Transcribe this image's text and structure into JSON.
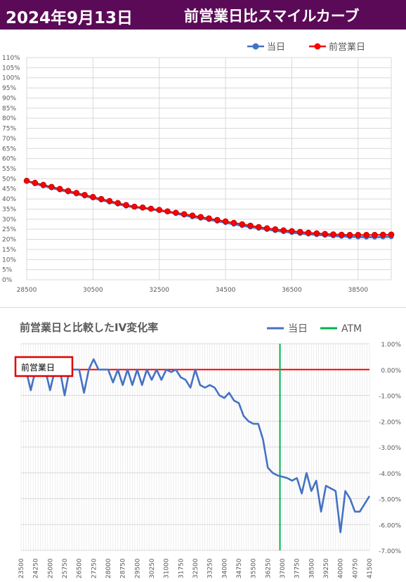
{
  "header": {
    "date": "2024年9月13日",
    "title": "前営業日比スマイルカーブ"
  },
  "chart_data": [
    {
      "type": "line",
      "legend": [
        "当日",
        "前営業日"
      ],
      "legend_position": "top-right",
      "xlim": [
        28500,
        39500
      ],
      "ylim": [
        0,
        1.1
      ],
      "x_ticks": [
        "28500",
        "30500",
        "32500",
        "34500",
        "36500",
        "38500"
      ],
      "y_ticks": [
        "0%",
        "5%",
        "10%",
        "15%",
        "20%",
        "25%",
        "30%",
        "35%",
        "40%",
        "45%",
        "50%",
        "55%",
        "60%",
        "65%",
        "70%",
        "75%",
        "80%",
        "85%",
        "90%",
        "95%",
        "100%",
        "105%",
        "110%"
      ],
      "grid": true,
      "colors": {
        "today": "#4472c4",
        "prev": "#ff0000"
      },
      "series": [
        {
          "name": "当日",
          "x": [
            28500,
            28750,
            29000,
            29250,
            29500,
            29750,
            30000,
            30250,
            30500,
            30750,
            31000,
            31250,
            31500,
            31750,
            32000,
            32250,
            32500,
            32750,
            33000,
            33250,
            33500,
            33750,
            34000,
            34250,
            34500,
            34750,
            35000,
            35250,
            35500,
            35750,
            36000,
            36250,
            36500,
            36750,
            37000,
            37250,
            37500,
            37750,
            38000,
            38250,
            38500,
            38750,
            39000,
            39250,
            39500
          ],
          "values": [
            0.49,
            0.475,
            0.465,
            0.455,
            0.445,
            0.435,
            0.425,
            0.415,
            0.405,
            0.395,
            0.385,
            0.375,
            0.365,
            0.36,
            0.355,
            0.35,
            0.343,
            0.336,
            0.328,
            0.32,
            0.312,
            0.305,
            0.298,
            0.29,
            0.283,
            0.275,
            0.268,
            0.261,
            0.255,
            0.249,
            0.243,
            0.238,
            0.234,
            0.229,
            0.226,
            0.223,
            0.22,
            0.217,
            0.215,
            0.213,
            0.212,
            0.211,
            0.211,
            0.212,
            0.213
          ]
        },
        {
          "name": "前営業日",
          "x": [
            28500,
            28750,
            29000,
            29250,
            29500,
            29750,
            30000,
            30250,
            30500,
            30750,
            31000,
            31250,
            31500,
            31750,
            32000,
            32250,
            32500,
            32750,
            33000,
            33250,
            33500,
            33750,
            34000,
            34250,
            34500,
            34750,
            35000,
            35250,
            35500,
            35750,
            36000,
            36250,
            36500,
            36750,
            37000,
            37250,
            37500,
            37750,
            38000,
            38250,
            38500,
            38750,
            39000,
            39250,
            39500
          ],
          "values": [
            0.49,
            0.48,
            0.47,
            0.46,
            0.45,
            0.44,
            0.43,
            0.42,
            0.41,
            0.4,
            0.39,
            0.38,
            0.37,
            0.362,
            0.358,
            0.352,
            0.346,
            0.339,
            0.332,
            0.325,
            0.318,
            0.311,
            0.304,
            0.296,
            0.289,
            0.282,
            0.275,
            0.268,
            0.261,
            0.255,
            0.25,
            0.245,
            0.241,
            0.237,
            0.233,
            0.23,
            0.227,
            0.225,
            0.223,
            0.222,
            0.222,
            0.222,
            0.222,
            0.223,
            0.224
          ]
        }
      ]
    },
    {
      "type": "line",
      "title": "前営業日と比較したIV変化率",
      "legend": [
        "当日",
        "ATM"
      ],
      "legend_position": "top-right",
      "annotation": "前営業日",
      "atm_strike": 36875,
      "ylim": [
        -0.07,
        0.01
      ],
      "y_ticks": [
        "1.00%",
        "0.00%",
        "-1.00%",
        "-2.00%",
        "-3.00%",
        "-4.00%",
        "-5.00%",
        "-6.00%",
        "-7.00%"
      ],
      "x_ticks": [
        "23500",
        "24250",
        "25000",
        "25750",
        "26500",
        "27250",
        "28000",
        "28750",
        "29500",
        "30250",
        "31000",
        "31750",
        "32500",
        "33250",
        "34000",
        "34750",
        "35500",
        "36250",
        "37000",
        "37750",
        "38500",
        "39250",
        "40000",
        "40750",
        "41500"
      ],
      "xlim": [
        23500,
        41500
      ],
      "grid": true,
      "colors": {
        "today": "#4472c4",
        "baseline": "#ff0000",
        "atm": "#00b050"
      },
      "series": [
        {
          "name": "当日",
          "x": [
            23500,
            23750,
            24000,
            24250,
            24500,
            24750,
            25000,
            25250,
            25500,
            25750,
            26000,
            26250,
            26500,
            26750,
            27000,
            27250,
            27500,
            27750,
            28000,
            28250,
            28500,
            28750,
            29000,
            29250,
            29500,
            29750,
            30000,
            30250,
            30500,
            30750,
            31000,
            31250,
            31500,
            31750,
            32000,
            32250,
            32500,
            32750,
            33000,
            33250,
            33500,
            33750,
            34000,
            34250,
            34500,
            34750,
            35000,
            35250,
            35500,
            35750,
            36000,
            36250,
            36500,
            36750,
            37000,
            37250,
            37500,
            37750,
            38000,
            38250,
            38500,
            38750,
            39000,
            39250,
            39500,
            39750,
            40000,
            40250,
            40500,
            40750,
            41000,
            41250,
            41500
          ],
          "values": [
            0,
            0,
            -0.008,
            0,
            0,
            0,
            -0.008,
            0,
            0,
            -0.01,
            0,
            0,
            0,
            -0.009,
            0,
            0.004,
            0,
            0,
            0,
            -0.005,
            0,
            -0.006,
            0,
            -0.006,
            0,
            -0.006,
            0,
            -0.004,
            0,
            -0.004,
            0,
            -0.001,
            0,
            -0.003,
            -0.004,
            -0.007,
            0,
            -0.006,
            -0.007,
            -0.006,
            -0.007,
            -0.01,
            -0.011,
            -0.009,
            -0.012,
            -0.013,
            -0.018,
            -0.02,
            -0.021,
            -0.021,
            -0.027,
            -0.038,
            -0.04,
            -0.041,
            -0.0415,
            -0.042,
            -0.043,
            -0.042,
            -0.048,
            -0.04,
            -0.047,
            -0.043,
            -0.055,
            -0.045,
            -0.046,
            -0.047,
            -0.063,
            -0.047,
            -0.05,
            -0.055,
            -0.055,
            -0.052,
            -0.049
          ]
        },
        {
          "name": "前営業日",
          "values": [
            0
          ]
        }
      ]
    }
  ]
}
